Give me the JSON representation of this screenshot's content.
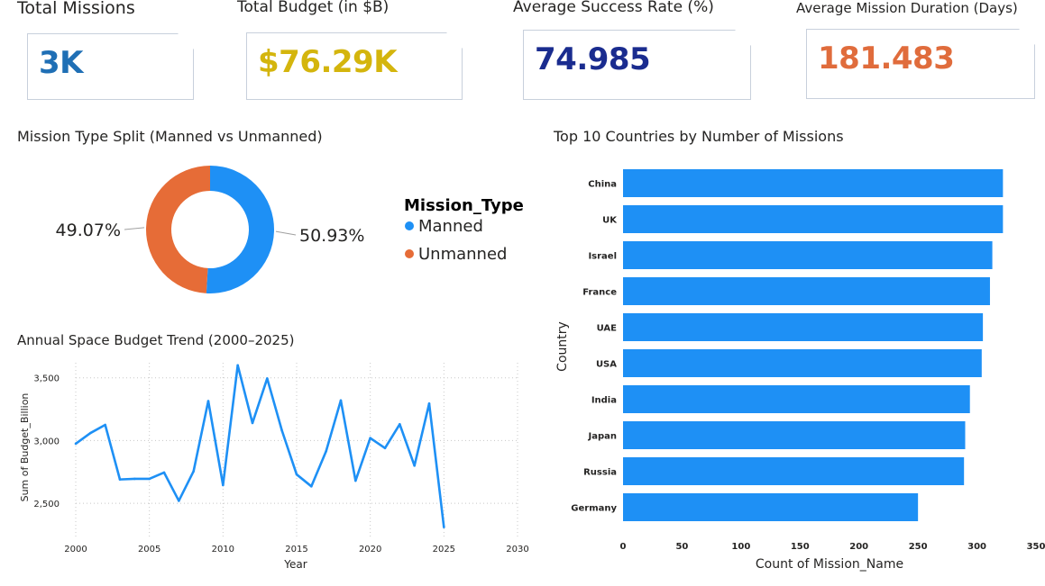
{
  "kpis": [
    {
      "title": "Total Missions",
      "value": "3K",
      "color": "#1f6fb5"
    },
    {
      "title": "Total Budget (in $B)",
      "value": "$76.29K",
      "color": "#d4b50d"
    },
    {
      "title": "Average Success Rate (%)",
      "value": "74.985",
      "color": "#1a2c8f"
    },
    {
      "title": "Average Mission Duration (Days)",
      "value": "181.483",
      "color": "#e06c3c"
    }
  ],
  "charts": {
    "donut": {
      "title": "Mission Type Split (Manned vs Unmanned)",
      "legend_title": "Mission_Type"
    },
    "line": {
      "title": "Annual Space Budget Trend (2000–2025)"
    },
    "bar": {
      "title": "Top 10 Countries by Number of Missions"
    }
  },
  "chart_data": [
    {
      "type": "pie",
      "title": "Mission Type Split (Manned vs Unmanned)",
      "legend_title": "Mission_Type",
      "donut": true,
      "slices": [
        {
          "name": "Manned",
          "value": 50.93,
          "label": "50.93%",
          "color": "#1e90f5"
        },
        {
          "name": "Unmanned",
          "value": 49.07,
          "label": "49.07%",
          "color": "#e66c37"
        }
      ]
    },
    {
      "type": "line",
      "title": "Annual Space Budget Trend (2000–2025)",
      "xlabel": "Year",
      "ylabel": "Sum of Budget_Billion",
      "x": [
        2000,
        2001,
        2002,
        2003,
        2004,
        2005,
        2006,
        2007,
        2008,
        2009,
        2010,
        2011,
        2012,
        2013,
        2014,
        2015,
        2016,
        2017,
        2018,
        2019,
        2020,
        2021,
        2022,
        2023,
        2024,
        2025
      ],
      "series": [
        {
          "values": [
            2975,
            3060,
            3125,
            2690,
            2695,
            2695,
            2745,
            2520,
            2755,
            3315,
            2645,
            3600,
            3140,
            3495,
            3080,
            2730,
            2635,
            2915,
            3320,
            2680,
            3020,
            2940,
            3130,
            2800,
            3295,
            2310
          ],
          "color": "#1e90f5"
        }
      ],
      "xlim": [
        2000,
        2030
      ],
      "ylim": [
        2300,
        3620
      ],
      "xticks": [
        "2000",
        "2005",
        "2010",
        "2015",
        "2020",
        "2025",
        "2030"
      ],
      "yticks": [
        "2,500",
        "3,000",
        "3,500"
      ],
      "grid": true
    },
    {
      "type": "bar",
      "orientation": "horizontal",
      "title": "Top 10 Countries by Number of Missions",
      "xlabel": "Count of Mission_Name",
      "ylabel": "Country",
      "categories": [
        "China",
        "UK",
        "Israel",
        "France",
        "UAE",
        "USA",
        "India",
        "Japan",
        "Russia",
        "Germany"
      ],
      "values": [
        322,
        322,
        313,
        311,
        305,
        304,
        294,
        290,
        289,
        250
      ],
      "color": "#1e90f5",
      "xlim": [
        0,
        350
      ],
      "xticks": [
        "0",
        "50",
        "100",
        "150",
        "200",
        "250",
        "300",
        "350"
      ]
    }
  ]
}
